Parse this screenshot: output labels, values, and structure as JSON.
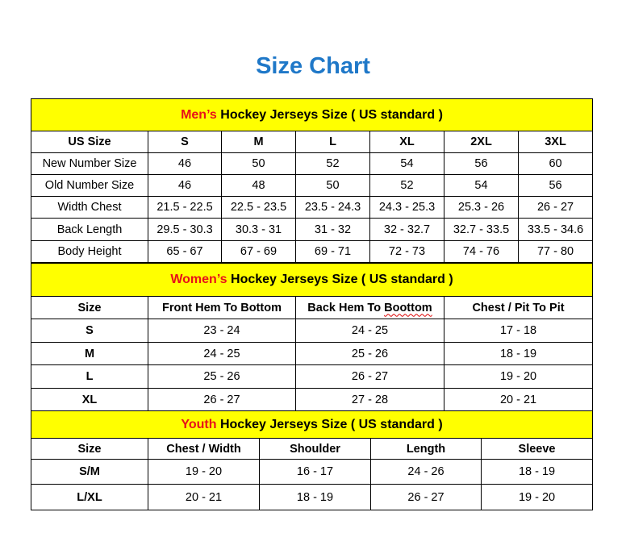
{
  "title": "Size Chart",
  "colors": {
    "title": "#1f78c8",
    "section_bg": "#ffff00",
    "highlight": "#e8111a"
  },
  "mens": {
    "title_highlight": "Men’s",
    "title_rest": " Hockey Jerseys Size ( US standard )",
    "header": [
      "US Size",
      "S",
      "M",
      "L",
      "XL",
      "2XL",
      "3XL"
    ],
    "rows": [
      [
        "New Number Size",
        "46",
        "50",
        "52",
        "54",
        "56",
        "60"
      ],
      [
        "Old Number Size",
        "46",
        "48",
        "50",
        "52",
        "54",
        "56"
      ],
      [
        "Width Chest",
        "21.5 - 22.5",
        "22.5 - 23.5",
        "23.5 - 24.3",
        "24.3 - 25.3",
        "25.3 - 26",
        "26 - 27"
      ],
      [
        "Back Length",
        "29.5 - 30.3",
        "30.3 - 31",
        "31 - 32",
        "32 - 32.7",
        "32.7 - 33.5",
        "33.5 - 34.6"
      ],
      [
        "Body Height",
        "65 - 67",
        "67 - 69",
        "69 - 71",
        "72 - 73",
        "74 - 76",
        "77 - 80"
      ]
    ]
  },
  "womens": {
    "title_highlight": "Women’s",
    "title_rest": " Hockey Jerseys Size ( US standard )",
    "header": [
      "Size",
      "Front Hem To Bottom",
      "Back Hem To Boottom",
      "Chest / Pit To Pit"
    ],
    "rows": [
      [
        "S",
        "23 - 24",
        "24 - 25",
        "17 - 18"
      ],
      [
        "M",
        "24 - 25",
        "25 - 26",
        "18 - 19"
      ],
      [
        "L",
        "25 - 26",
        "26 - 27",
        "19 - 20"
      ],
      [
        "XL",
        "26 - 27",
        "27 - 28",
        "20 - 21"
      ]
    ]
  },
  "youth": {
    "title_highlight": "Youth",
    "title_rest": " Hockey Jerseys Size ( US standard )",
    "header": [
      "Size",
      "Chest / Width",
      "Shoulder",
      "Length",
      "Sleeve"
    ],
    "rows": [
      [
        "S/M",
        "19 - 20",
        "16 - 17",
        "24 - 26",
        "18 - 19"
      ],
      [
        "L/XL",
        "20 - 21",
        "18 - 19",
        "26 - 27",
        "19 - 20"
      ]
    ]
  }
}
